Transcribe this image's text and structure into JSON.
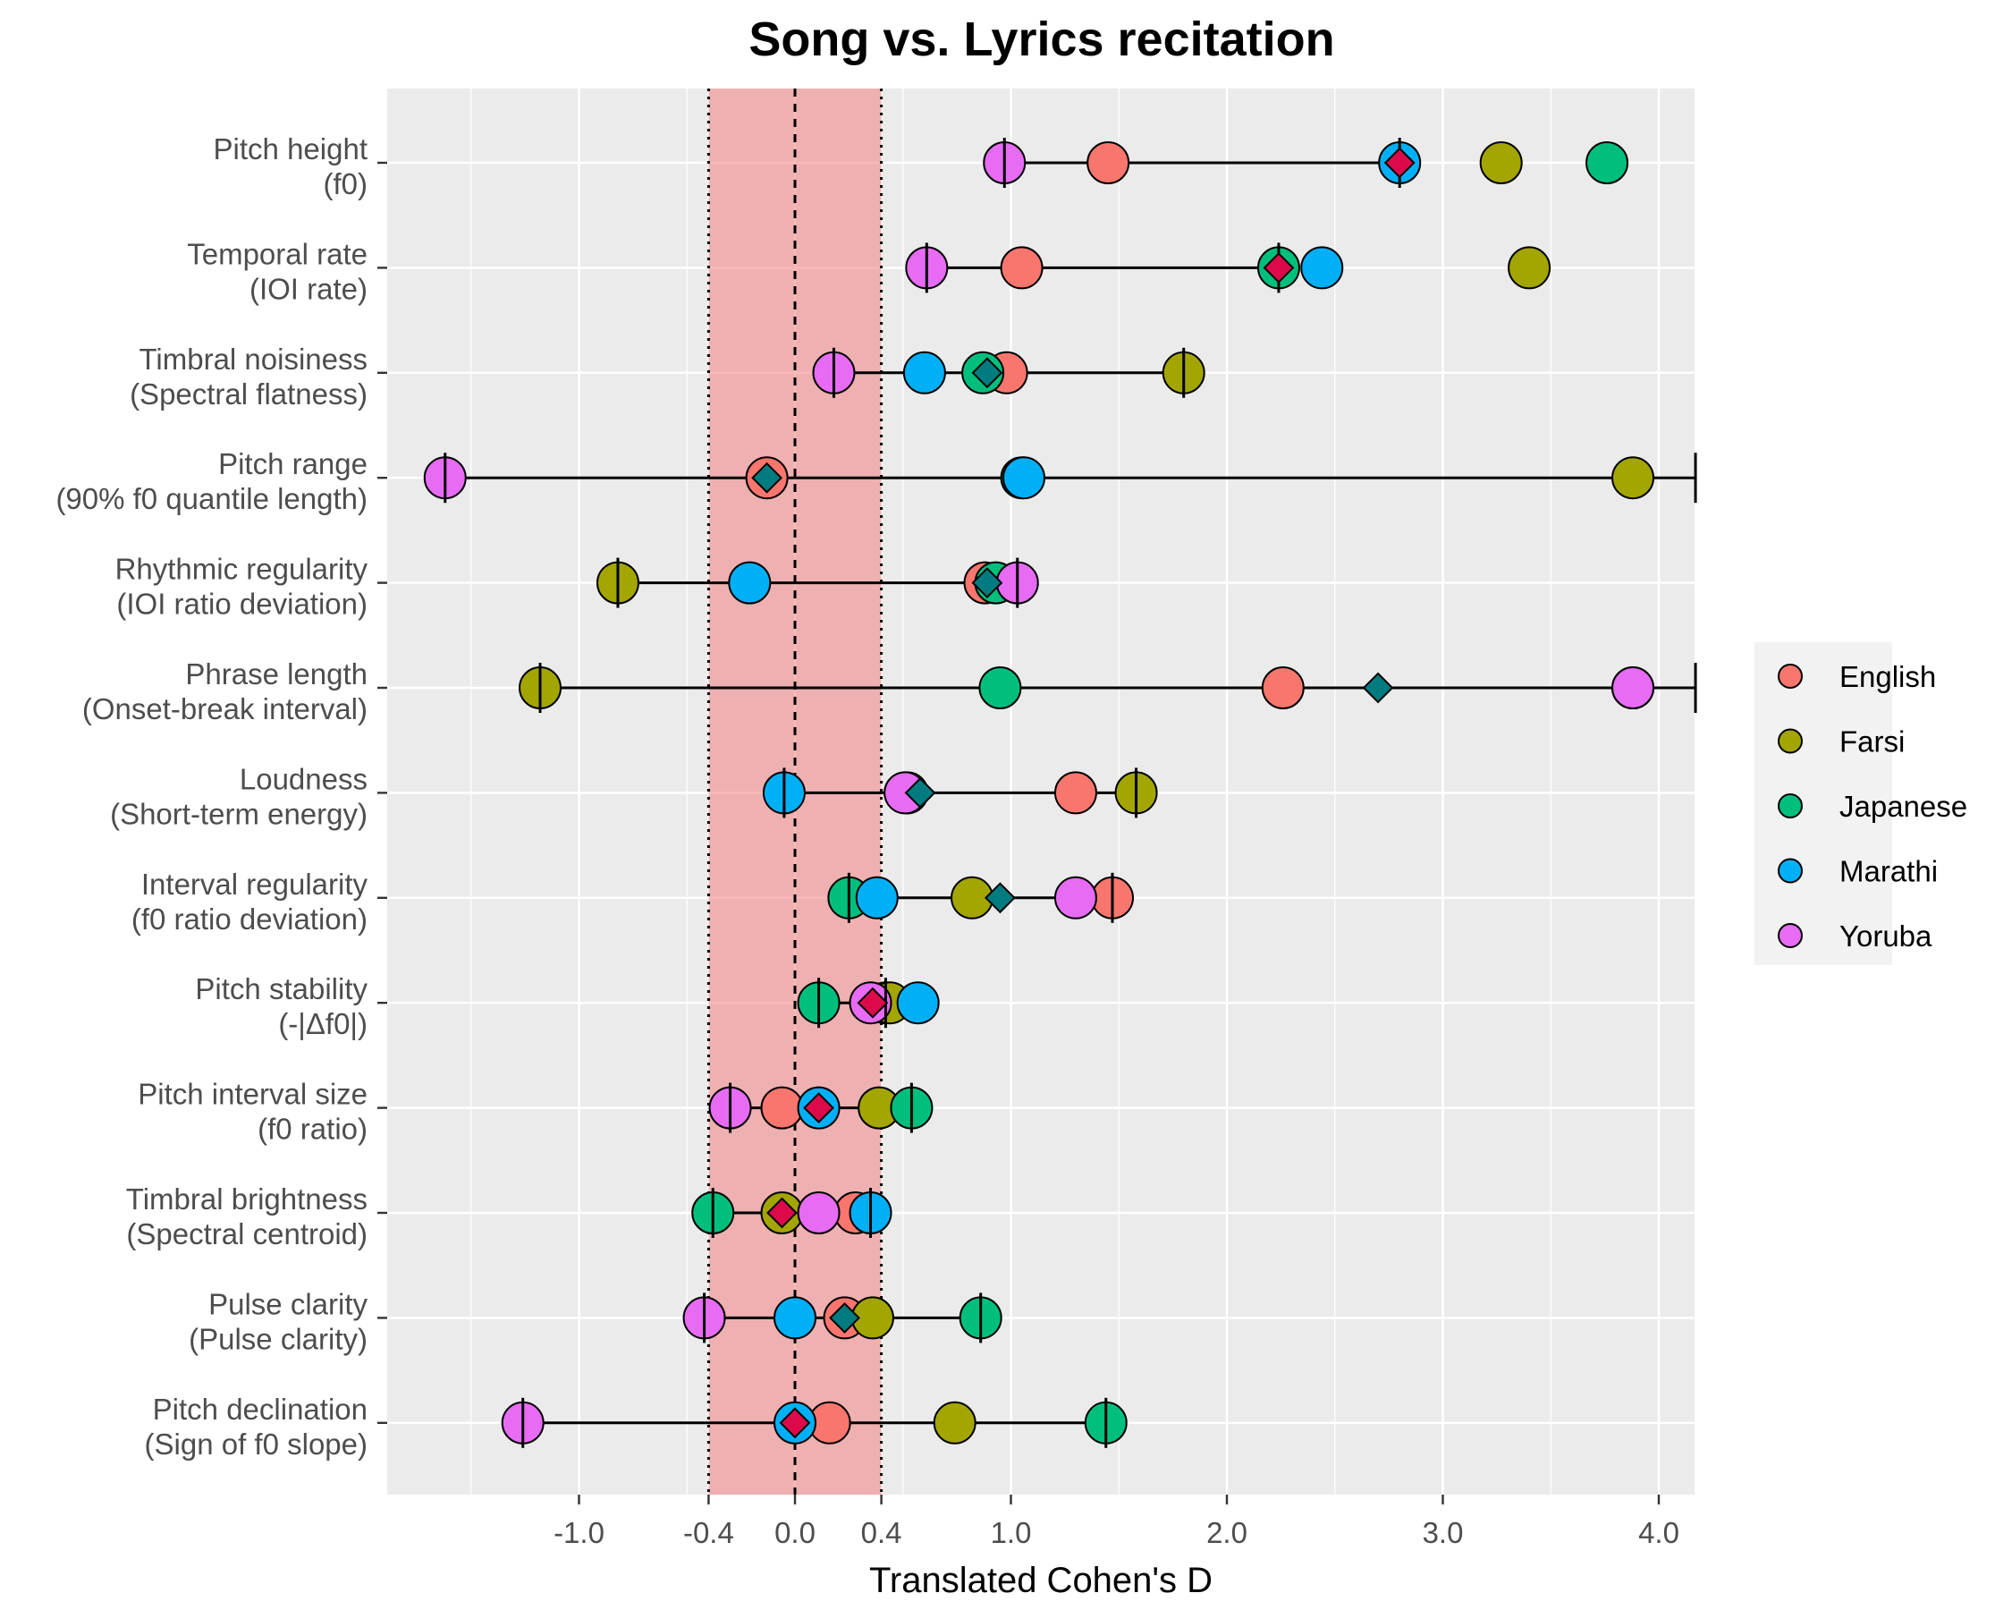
{
  "chart_data": {
    "type": "scatter",
    "title": "Song vs. Lyrics recitation",
    "xlabel": "Translated Cohen's D",
    "ylabel": "",
    "xlim": [
      -1.9,
      4.17
    ],
    "x_ticks": [
      -1.0,
      -0.4,
      0.0,
      0.4,
      1.0,
      2.0,
      3.0,
      4.0
    ],
    "x_tick_labels": [
      "-1.0",
      "-0.4",
      "0.0",
      "0.4",
      "1.0",
      "2.0",
      "3.0",
      "4.0"
    ],
    "null_band": [
      -0.4,
      0.4
    ],
    "reference_lines": [
      -0.4,
      0.0,
      0.4
    ],
    "grid": true,
    "legend_position": "right",
    "series": [
      {
        "name": "English",
        "color": "#F8766D"
      },
      {
        "name": "Farsi",
        "color": "#A3A500"
      },
      {
        "name": "Japanese",
        "color": "#00BF7D"
      },
      {
        "name": "Marathi",
        "color": "#00B0F6"
      },
      {
        "name": "Yoruba",
        "color": "#E76BF3"
      }
    ],
    "features": [
      {
        "label": [
          "Pitch height",
          "(f0)"
        ],
        "English": 1.45,
        "Farsi": 3.27,
        "Japanese": 3.76,
        "Marathi": 2.8,
        "Yoruba": 0.97,
        "ci": [
          0.97,
          2.8
        ],
        "mean": 2.8,
        "mean_color": "#DC0A4A"
      },
      {
        "label": [
          "Temporal rate",
          "(IOI rate)"
        ],
        "English": 1.05,
        "Farsi": 3.4,
        "Japanese": 2.24,
        "Marathi": 2.44,
        "Yoruba": 0.61,
        "ci": [
          0.61,
          2.24
        ],
        "mean": 2.24,
        "mean_color": "#DC0A4A"
      },
      {
        "label": [
          "Timbral noisiness",
          "(Spectral flatness)"
        ],
        "English": 0.98,
        "Farsi": 1.8,
        "Japanese": 0.87,
        "Marathi": 0.6,
        "Yoruba": 0.18,
        "ci": [
          0.18,
          1.8
        ],
        "mean": 0.89,
        "mean_color": "#007C80"
      },
      {
        "label": [
          "Pitch range",
          "(90% f0 quantile length)"
        ],
        "English": -0.13,
        "Farsi": 3.88,
        "Japanese": 1.05,
        "Marathi": 1.06,
        "Yoruba": -1.62,
        "ci": [
          -1.62,
          4.17
        ],
        "mean": -0.13,
        "mean_color": "#007C80"
      },
      {
        "label": [
          "Rhythmic regularity",
          "(IOI ratio deviation)"
        ],
        "English": 0.88,
        "Farsi": -0.82,
        "Japanese": 0.93,
        "Marathi": -0.21,
        "Yoruba": 1.03,
        "ci": [
          -0.82,
          1.03
        ],
        "mean": 0.89,
        "mean_color": "#007C80"
      },
      {
        "label": [
          "Phrase length",
          "(Onset-break interval)"
        ],
        "English": 2.26,
        "Farsi": -1.18,
        "Japanese": 0.95,
        "Marathi": 3.88,
        "Yoruba": 3.88,
        "ci": [
          -1.18,
          4.17
        ],
        "mean": 2.7,
        "mean_color": "#007C80"
      },
      {
        "label": [
          "Loudness",
          "(Short-term energy)"
        ],
        "English": 1.3,
        "Farsi": 1.58,
        "Japanese": 0.52,
        "Marathi": -0.05,
        "Yoruba": 0.51,
        "ci": [
          -0.05,
          1.58
        ],
        "mean": 0.58,
        "mean_color": "#007C80"
      },
      {
        "label": [
          "Interval regularity",
          "(f0 ratio deviation)"
        ],
        "English": 1.47,
        "Farsi": 0.82,
        "Japanese": 0.25,
        "Marathi": 0.38,
        "Yoruba": 1.3,
        "ci": [
          0.25,
          1.47
        ],
        "mean": 0.95,
        "mean_color": "#007C80"
      },
      {
        "label": [
          "Pitch stability",
          "(-|Δf0|)"
        ],
        "English": 0.42,
        "Farsi": 0.44,
        "Japanese": 0.11,
        "Marathi": 0.57,
        "Yoruba": 0.35,
        "ci": [
          0.11,
          0.42
        ],
        "mean": 0.36,
        "mean_color": "#DC0A4A"
      },
      {
        "label": [
          "Pitch interval size",
          "(f0 ratio)"
        ],
        "English": -0.06,
        "Farsi": 0.39,
        "Japanese": 0.54,
        "Marathi": 0.11,
        "Yoruba": -0.3,
        "ci": [
          -0.3,
          0.54
        ],
        "mean": 0.11,
        "mean_color": "#DC0A4A"
      },
      {
        "label": [
          "Timbral brightness",
          "(Spectral centroid)"
        ],
        "English": 0.28,
        "Farsi": -0.06,
        "Japanese": -0.38,
        "Marathi": 0.35,
        "Yoruba": 0.11,
        "ci": [
          -0.38,
          0.35
        ],
        "mean": -0.06,
        "mean_color": "#DC0A4A"
      },
      {
        "label": [
          "Pulse clarity",
          "(Pulse clarity)"
        ],
        "English": 0.23,
        "Farsi": 0.36,
        "Japanese": 0.86,
        "Marathi": 0.0,
        "Yoruba": -0.42,
        "ci": [
          -0.42,
          0.86
        ],
        "mean": 0.23,
        "mean_color": "#007C80"
      },
      {
        "label": [
          "Pitch declination",
          "(Sign of f0 slope)"
        ],
        "English": 0.16,
        "Farsi": 0.74,
        "Japanese": 1.44,
        "Marathi": 0.0,
        "Yoruba": -1.26,
        "ci": [
          -1.26,
          1.44
        ],
        "mean": 0.0,
        "mean_color": "#DC0A4A"
      }
    ]
  }
}
